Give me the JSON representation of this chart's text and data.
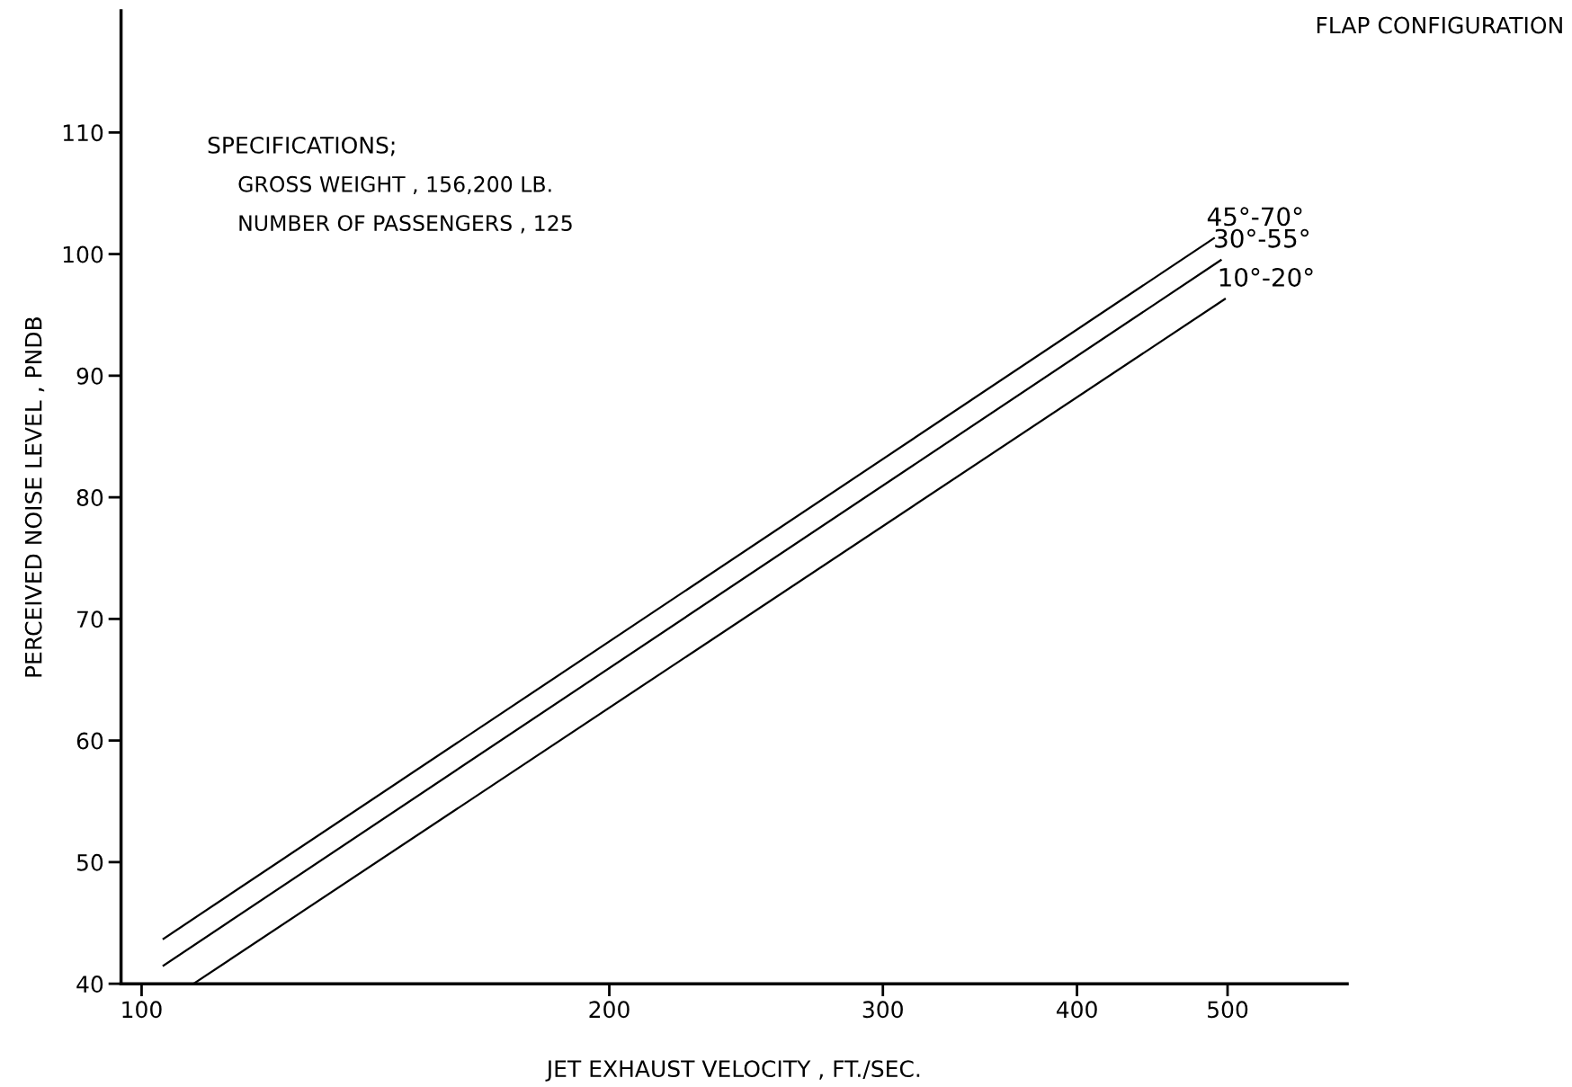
{
  "chart_data": {
    "type": "line",
    "title": "FLAP CONFIGURATION",
    "xlabel": "JET EXHAUST VELOCITY , FT./SEC.",
    "ylabel": "PERCEIVED NOISE LEVEL , PNDB",
    "annotations": [
      "SPECIFICATIONS;",
      "GROSS WEIGHT , 156,200 LB.",
      "NUMBER OF PASSENGERS , 125"
    ],
    "log": "x",
    "xlim": [
      97,
      597
    ],
    "xticks": [
      100,
      200,
      300,
      400,
      500
    ],
    "ylim": [
      40,
      120
    ],
    "yticks": [
      40,
      50,
      60,
      70,
      80,
      90,
      100,
      110
    ],
    "grid": false,
    "legend": false,
    "marker": "none",
    "line_style": "solid",
    "series": [
      {
        "name": "45°-70°",
        "color": "#000000",
        "x": [
          103.3,
          490
        ],
        "values": [
          43.7,
          101.3
        ]
      },
      {
        "name": "30°-55°",
        "color": "#000000",
        "x": [
          103.3,
          495
        ],
        "values": [
          41.5,
          99.5
        ]
      },
      {
        "name": "10°-20°",
        "color": "#000000",
        "x": [
          108,
          498
        ],
        "values": [
          40,
          96.3
        ]
      }
    ]
  }
}
